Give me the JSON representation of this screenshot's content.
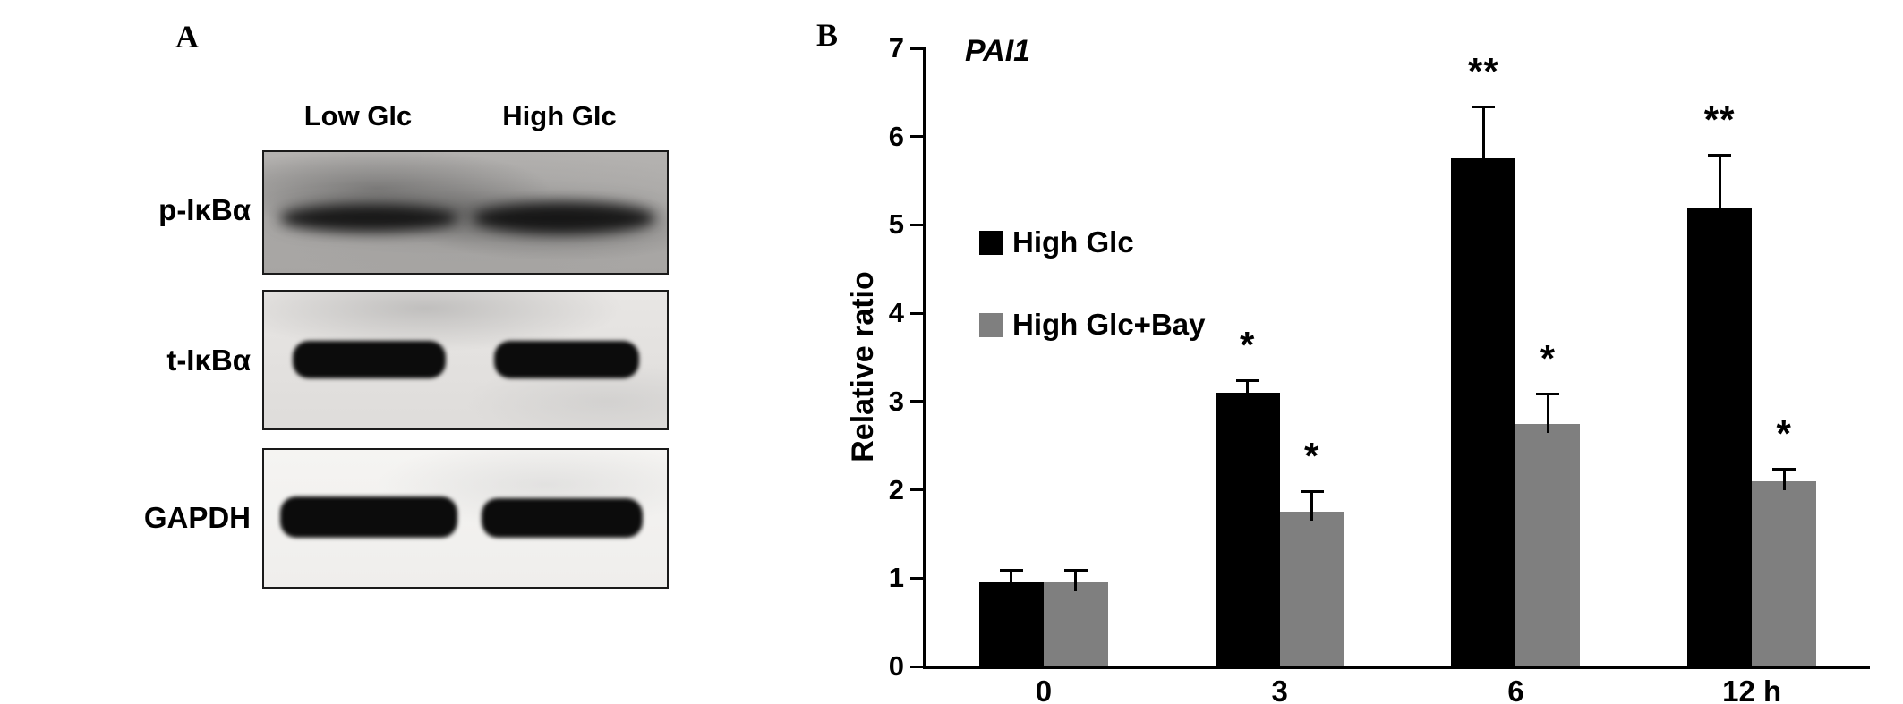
{
  "figure": {
    "panel_a": {
      "label": "A",
      "col_headers": [
        "Low Glc",
        "High Glc"
      ],
      "rows": [
        {
          "label": "p-IκBα"
        },
        {
          "label": "t-IκBα"
        },
        {
          "label": "GAPDH"
        }
      ]
    },
    "panel_b": {
      "label": "B"
    }
  },
  "chart_data": {
    "type": "bar",
    "title": "PAI1",
    "xlabel": "",
    "ylabel": "Relative ratio",
    "ylim": [
      0,
      7
    ],
    "yticks": [
      0,
      1,
      2,
      3,
      4,
      5,
      6,
      7
    ],
    "categories": [
      "0",
      "3",
      "6",
      "12 h"
    ],
    "series": [
      {
        "name": "High Glc",
        "color": "#000000",
        "values": [
          0.95,
          3.1,
          5.75,
          5.2
        ],
        "errors": [
          0.15,
          0.15,
          0.6,
          0.6
        ],
        "significance": [
          "",
          "*",
          "**",
          "**"
        ]
      },
      {
        "name": "High Glc+Bay",
        "color": "#7f7f7f",
        "values": [
          0.95,
          1.75,
          2.75,
          2.1
        ],
        "errors": [
          0.15,
          0.25,
          0.35,
          0.15
        ],
        "significance": [
          "",
          "*",
          "*",
          "*"
        ]
      }
    ],
    "legend_position": "upper-left-inside",
    "grid": false
  }
}
